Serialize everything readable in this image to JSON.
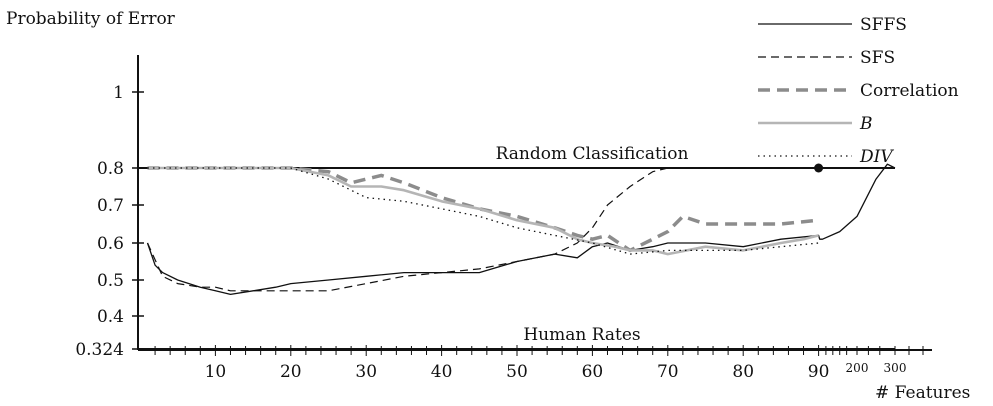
{
  "chart_data": {
    "type": "line",
    "ylabel": "Probability of Error",
    "xlabel": "# Features",
    "y_ticks": [
      {
        "value": 0.324,
        "label": "0.324"
      },
      {
        "value": 0.4,
        "label": "0.4"
      },
      {
        "value": 0.5,
        "label": "0.5"
      },
      {
        "value": 0.6,
        "label": "0.6"
      },
      {
        "value": 0.7,
        "label": "0.7"
      },
      {
        "value": 0.8,
        "label": "0.8"
      },
      {
        "value": 1.0,
        "label": "1"
      }
    ],
    "x_ticks": [
      {
        "value": 10,
        "label": "10"
      },
      {
        "value": 20,
        "label": "20"
      },
      {
        "value": 30,
        "label": "30"
      },
      {
        "value": 40,
        "label": "40"
      },
      {
        "value": 50,
        "label": "50"
      },
      {
        "value": 60,
        "label": "60"
      },
      {
        "value": 70,
        "label": "70"
      },
      {
        "value": 80,
        "label": "80"
      },
      {
        "value": 90,
        "label": "90"
      },
      {
        "value": 200,
        "label": "200"
      },
      {
        "value": 300,
        "label": "300"
      }
    ],
    "reference_lines": [
      {
        "label": "Random Classification",
        "y": 0.8
      },
      {
        "label": "Human Rates",
        "y": 0.324
      }
    ],
    "legend_position": "top-right",
    "series": [
      {
        "name": "SFFS",
        "style": "solid",
        "color": "#111111",
        "x": [
          1,
          2,
          3,
          5,
          8,
          10,
          12,
          15,
          18,
          20,
          25,
          30,
          35,
          40,
          45,
          50,
          55,
          58,
          60,
          62,
          65,
          68,
          70,
          75,
          80,
          85,
          90,
          92,
          95,
          100,
          150,
          200,
          250,
          280,
          300
        ],
        "y": [
          0.6,
          0.54,
          0.52,
          0.5,
          0.48,
          0.47,
          0.46,
          0.47,
          0.48,
          0.49,
          0.5,
          0.51,
          0.52,
          0.52,
          0.52,
          0.55,
          0.57,
          0.56,
          0.59,
          0.6,
          0.58,
          0.59,
          0.6,
          0.6,
          0.59,
          0.61,
          0.62,
          0.61,
          0.61,
          0.61,
          0.63,
          0.67,
          0.77,
          0.81,
          0.8
        ]
      },
      {
        "name": "SFS",
        "style": "dashed",
        "color": "#111111",
        "x": [
          1,
          3,
          5,
          8,
          10,
          12,
          15,
          20,
          25,
          30,
          35,
          40,
          45,
          50,
          55,
          58,
          60,
          62,
          65,
          68,
          70,
          75,
          80,
          85,
          88,
          90
        ],
        "y": [
          0.6,
          0.51,
          0.49,
          0.48,
          0.48,
          0.47,
          0.47,
          0.47,
          0.47,
          0.49,
          0.51,
          0.52,
          0.53,
          0.55,
          0.57,
          0.6,
          0.64,
          0.7,
          0.75,
          0.79,
          0.8,
          0.8,
          0.8,
          0.8,
          0.8,
          0.8
        ]
      },
      {
        "name": "Correlation",
        "style": "thick-dashed",
        "color": "#8c8c8c",
        "x": [
          1,
          5,
          10,
          15,
          20,
          25,
          28,
          30,
          32,
          35,
          40,
          45,
          50,
          55,
          58,
          60,
          62,
          65,
          68,
          70,
          72,
          75,
          80,
          85,
          90
        ],
        "y": [
          0.8,
          0.8,
          0.8,
          0.8,
          0.8,
          0.79,
          0.76,
          0.77,
          0.78,
          0.76,
          0.72,
          0.69,
          0.67,
          0.64,
          0.62,
          0.61,
          0.62,
          0.58,
          0.61,
          0.63,
          0.67,
          0.65,
          0.65,
          0.65,
          0.66
        ]
      },
      {
        "name": "B",
        "style": "solid",
        "color": "#b5b5b5",
        "x": [
          1,
          5,
          10,
          15,
          20,
          25,
          28,
          30,
          32,
          35,
          40,
          45,
          50,
          55,
          58,
          60,
          63,
          65,
          68,
          70,
          75,
          80,
          85,
          88,
          90
        ],
        "y": [
          0.8,
          0.8,
          0.8,
          0.8,
          0.8,
          0.78,
          0.75,
          0.75,
          0.75,
          0.74,
          0.71,
          0.69,
          0.66,
          0.64,
          0.61,
          0.6,
          0.59,
          0.58,
          0.58,
          0.57,
          0.59,
          0.58,
          0.6,
          0.61,
          0.62
        ]
      },
      {
        "name": "DIV",
        "style": "dotted",
        "color": "#111111",
        "x": [
          1,
          5,
          10,
          15,
          20,
          25,
          28,
          30,
          35,
          40,
          45,
          50,
          55,
          60,
          65,
          70,
          75,
          80,
          85,
          90
        ],
        "y": [
          0.8,
          0.8,
          0.8,
          0.8,
          0.8,
          0.77,
          0.74,
          0.72,
          0.71,
          0.69,
          0.67,
          0.64,
          0.62,
          0.6,
          0.57,
          0.58,
          0.58,
          0.58,
          0.59,
          0.6
        ]
      }
    ],
    "markers": [
      {
        "x": 90,
        "y": 0.8
      }
    ]
  }
}
